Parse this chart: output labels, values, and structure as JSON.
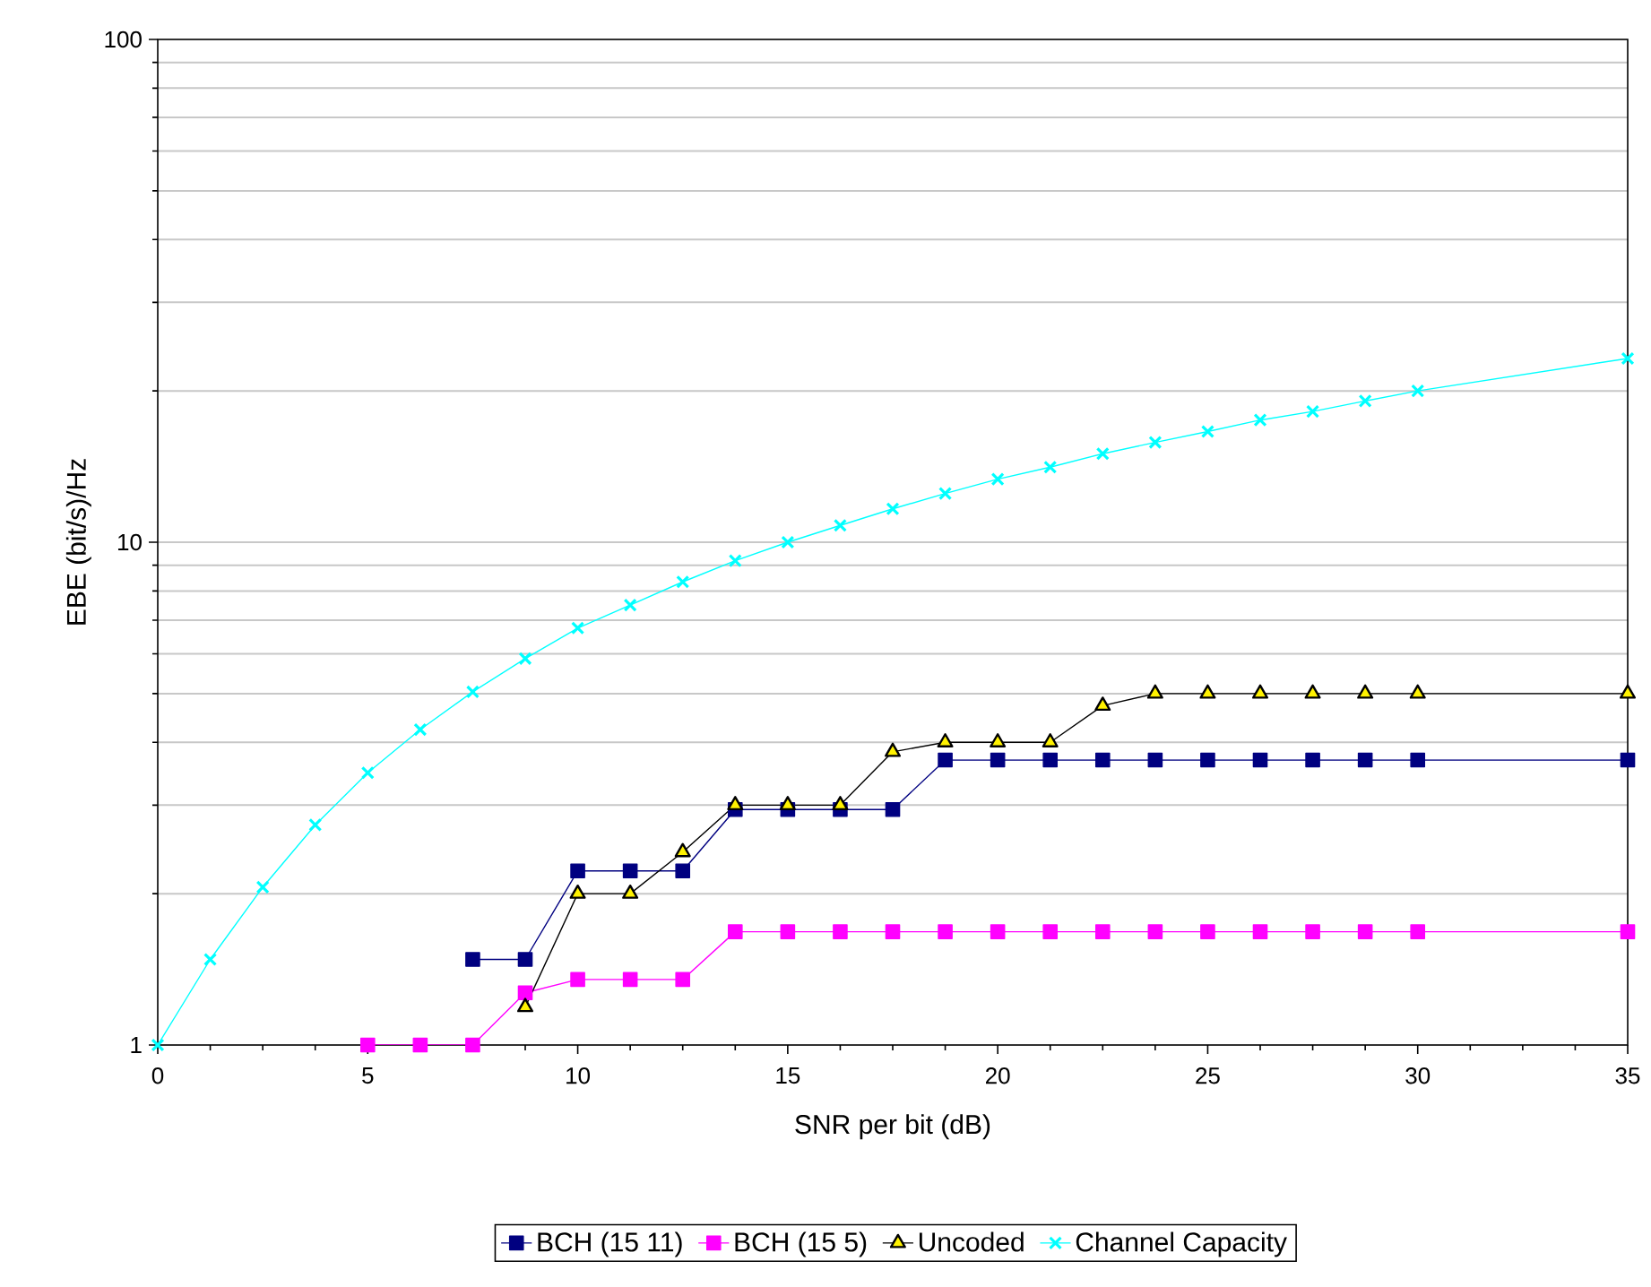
{
  "chart_data": {
    "type": "line",
    "xlabel": "SNR per bit (dB)",
    "ylabel": "EBE (bit/s)/Hz",
    "log": "y",
    "grid": "y",
    "legend": "bottom",
    "xlim": [
      0,
      35
    ],
    "xticks": [
      0,
      5,
      10,
      15,
      20,
      25,
      30,
      35
    ],
    "ylim": [
      1,
      100
    ],
    "yticks": [
      1,
      10,
      100
    ],
    "x": [
      0,
      1.25,
      2.5,
      3.75,
      5,
      6.25,
      7.5,
      8.75,
      10,
      11.25,
      12.5,
      13.75,
      15,
      16.25,
      17.5,
      18.75,
      20,
      21.25,
      22.5,
      23.75,
      25,
      26.25,
      27.5,
      28.75,
      30,
      35
    ],
    "series": [
      {
        "name": "BCH (15 11)",
        "color": "#000080",
        "marker": "square",
        "values": [
          null,
          null,
          null,
          null,
          null,
          null,
          1.48,
          1.48,
          2.22,
          2.22,
          2.22,
          2.94,
          2.94,
          2.94,
          2.94,
          3.69,
          3.69,
          3.69,
          3.69,
          3.69,
          3.69,
          3.69,
          3.69,
          3.69,
          3.69,
          3.69
        ]
      },
      {
        "name": "BCH (15 5)",
        "color": "#ff00ff",
        "marker": "square",
        "values": [
          null,
          null,
          null,
          null,
          1.0,
          1.0,
          1.0,
          1.27,
          1.35,
          1.35,
          1.35,
          1.68,
          1.68,
          1.68,
          1.68,
          1.68,
          1.68,
          1.68,
          1.68,
          1.68,
          1.68,
          1.68,
          1.68,
          1.68,
          1.68,
          1.68
        ]
      },
      {
        "name": "Uncoded",
        "color": "#000000",
        "marker": "triangle",
        "values": [
          null,
          null,
          null,
          null,
          null,
          null,
          null,
          1.19,
          2.0,
          2.0,
          2.42,
          3.0,
          3.0,
          3.0,
          3.83,
          4.0,
          4.0,
          4.0,
          4.73,
          5.0,
          5.0,
          5.0,
          5.0,
          5.0,
          5.0,
          5.0
        ]
      },
      {
        "name": "Channel Capacity",
        "color": "#00ffff",
        "marker": "cross",
        "values": [
          1,
          1.48,
          2.06,
          2.74,
          3.48,
          4.24,
          5.04,
          5.87,
          6.75,
          7.5,
          8.34,
          9.19,
          10,
          10.8,
          11.65,
          12.5,
          13.35,
          14.1,
          15,
          15.8,
          16.6,
          17.5,
          18.2,
          19.1,
          20,
          23.2
        ]
      }
    ]
  }
}
